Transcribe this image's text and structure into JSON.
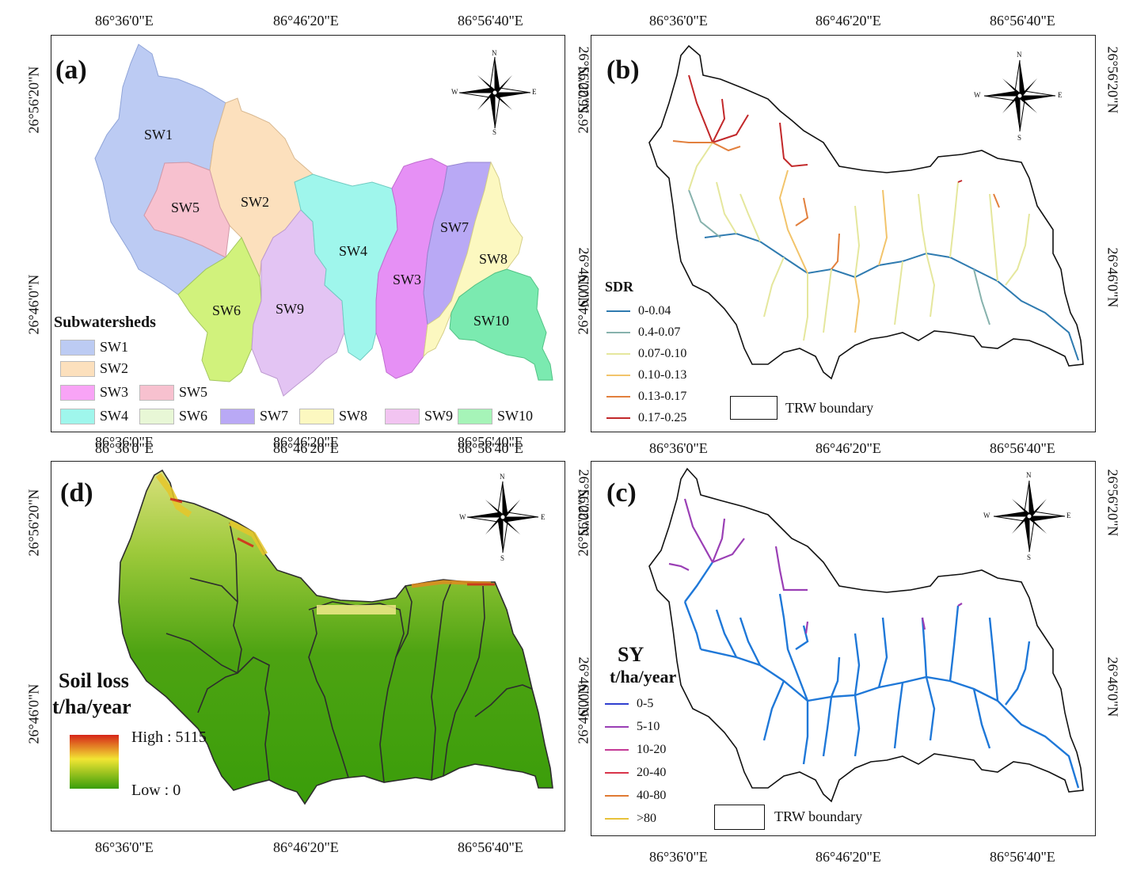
{
  "axes": {
    "lon_labels": [
      "86°36'0\"E",
      "86°46'20\"E",
      "86°56'40\"E"
    ],
    "lat_labels": [
      "26°56'20\"N",
      "26°46'0\"N"
    ]
  },
  "panels": {
    "a": {
      "letter": "(a)",
      "legend_title": "Subwatersheds",
      "legend": [
        {
          "label": "SW1",
          "color": "#bccbf3"
        },
        {
          "label": "SW2",
          "color": "#fce0bd"
        },
        {
          "label": "SW3",
          "color": "#f8a4f6"
        },
        {
          "label": "SW5",
          "color": "#f7c1cf"
        },
        {
          "label": "SW4",
          "color": "#9ff6ec"
        },
        {
          "label": "SW6",
          "color": "#e8f7d6"
        },
        {
          "label": "SW7",
          "color": "#b9a9f5"
        },
        {
          "label": "SW8",
          "color": "#fcf8c0"
        },
        {
          "label": "SW9",
          "color": "#f2c4f1"
        },
        {
          "label": "SW10",
          "color": "#a6f4b8"
        }
      ],
      "map_labels": [
        "SW1",
        "SW5",
        "SW2",
        "SW4",
        "SW7",
        "SW8",
        "SW3",
        "SW6",
        "SW9",
        "SW10"
      ]
    },
    "b": {
      "letter": "(b)",
      "legend_title": "SDR",
      "legend": [
        {
          "label": "0-0.04",
          "color": "#2f7bb0"
        },
        {
          "label": "0.4-0.07",
          "color": "#87b2ad"
        },
        {
          "label": "0.07-0.10",
          "color": "#e5e79d"
        },
        {
          "label": "0.10-0.13",
          "color": "#f2c46b"
        },
        {
          "label": "0.13-0.17",
          "color": "#e2803d"
        },
        {
          "label": "0.17-0.25",
          "color": "#c2282a"
        }
      ],
      "boundary_label": "TRW boundary"
    },
    "c": {
      "letter": "(c)",
      "legend_title_1": "SY",
      "legend_title_2": "t/ha/year",
      "legend": [
        {
          "label": "0-5",
          "color": "#2f3fcf"
        },
        {
          "label": "5-10",
          "color": "#9a3fb5"
        },
        {
          "label": "10-20",
          "color": "#c43a96"
        },
        {
          "label": "20-40",
          "color": "#d8344a"
        },
        {
          "label": "40-80",
          "color": "#e07a33"
        },
        {
          "label": ">80",
          "color": "#e8c23a"
        }
      ],
      "boundary_label": "TRW boundary"
    },
    "d": {
      "letter": "(d)",
      "legend_title_1": "Soil loss",
      "legend_title_2": "t/ha/year",
      "high_label": "High : 5115",
      "low_label": "Low : 0",
      "ramp": [
        "#d62518",
        "#f2e533",
        "#3a9d0a"
      ]
    }
  },
  "compass": {
    "n": "N",
    "s": "S",
    "e": "E",
    "w": "W"
  }
}
